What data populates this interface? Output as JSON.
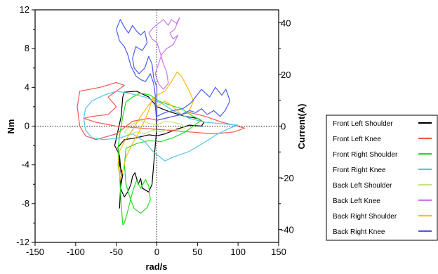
{
  "chart_data": {
    "type": "line",
    "xlabel": "rad/s",
    "ylabel": "Nm",
    "y2label": "Current(A)",
    "xlim": [
      -150,
      150
    ],
    "ylim": [
      -12,
      12
    ],
    "y2lim": [
      -45,
      45
    ],
    "xticks": [
      "-150",
      "-100",
      "-50",
      "0",
      "50",
      "100",
      "150"
    ],
    "yticks": [
      "-12",
      "-8",
      "-4",
      "0",
      "4",
      "8",
      "12"
    ],
    "y2ticks": [
      "-40",
      "-20",
      "0",
      "20",
      "40"
    ],
    "x_values_for_ticks": [
      -150,
      -100,
      -50,
      0,
      50,
      100,
      150
    ],
    "y_values_for_ticks": [
      -12,
      -8,
      -4,
      0,
      4,
      8,
      12
    ],
    "y2_values_for_ticks": [
      -40,
      -20,
      0,
      20,
      40
    ],
    "grid": false,
    "zero_lines": "dotted",
    "legend_position": "right",
    "series": [
      {
        "name": "Front Left Shoulder",
        "color": "#000000",
        "points": [
          [
            -46,
            -8.5
          ],
          [
            -44,
            -5
          ],
          [
            -46,
            -3
          ],
          [
            -52,
            -2
          ],
          [
            -48,
            -0.5
          ],
          [
            -44,
            1
          ],
          [
            -42,
            3
          ],
          [
            -40,
            3.5
          ],
          [
            -25,
            3.6
          ],
          [
            -10,
            3
          ],
          [
            0,
            2
          ],
          [
            15,
            1.5
          ],
          [
            35,
            1
          ],
          [
            50,
            0.8
          ],
          [
            58,
            0.4
          ],
          [
            55,
            0
          ],
          [
            40,
            0.1
          ],
          [
            25,
            -0.3
          ],
          [
            10,
            -0.8
          ],
          [
            0,
            -1
          ],
          [
            -10,
            -0.9
          ],
          [
            -25,
            -1.2
          ],
          [
            -40,
            -1.4
          ],
          [
            -44,
            -1.8
          ],
          [
            -48,
            -2.2
          ],
          [
            -46,
            -4
          ],
          [
            -42,
            -5
          ],
          [
            -45,
            -6.4
          ],
          [
            -40,
            -7.3
          ],
          [
            -36,
            -6.8
          ],
          [
            -32,
            -6
          ],
          [
            -30,
            -5.2
          ],
          [
            -27,
            -4.8
          ],
          [
            -23,
            -6
          ],
          [
            -20,
            -5.4
          ],
          [
            -18,
            -6.4
          ],
          [
            -10,
            -6.8
          ],
          [
            -6,
            -6
          ],
          [
            -4,
            -4
          ],
          [
            -2,
            -2
          ],
          [
            0,
            0
          ],
          [
            -2,
            2.5
          ]
        ]
      },
      {
        "name": "Front Left Knee",
        "color": "#f05a4f",
        "points": [
          [
            -70,
            4
          ],
          [
            -95,
            3.6
          ],
          [
            -98,
            2
          ],
          [
            -95,
            0
          ],
          [
            -88,
            -1
          ],
          [
            -75,
            -1.4
          ],
          [
            -50,
            -0.8
          ],
          [
            -30,
            0.5
          ],
          [
            -10,
            0.8
          ],
          [
            0,
            0.6
          ],
          [
            20,
            1
          ],
          [
            40,
            1.4
          ],
          [
            60,
            1
          ],
          [
            80,
            0.4
          ],
          [
            95,
            0.1
          ],
          [
            108,
            -0.2
          ],
          [
            95,
            -0.6
          ],
          [
            70,
            -0.8
          ],
          [
            40,
            -0.6
          ],
          [
            10,
            -0.4
          ],
          [
            -20,
            -0.2
          ],
          [
            -50,
            0
          ],
          [
            -75,
            0.4
          ],
          [
            -90,
            0.8
          ],
          [
            -80,
            1
          ],
          [
            -60,
            1.2
          ],
          [
            -50,
            2
          ],
          [
            -60,
            3
          ],
          [
            -40,
            4.2
          ],
          [
            -50,
            4.5
          ],
          [
            -70,
            4
          ]
        ]
      },
      {
        "name": "Front Right Shoulder",
        "color": "#22dd22",
        "points": [
          [
            -42,
            -10.2
          ],
          [
            -44,
            -8
          ],
          [
            -46,
            -5
          ],
          [
            -48,
            -2.5
          ],
          [
            -46,
            -1
          ],
          [
            -42,
            1
          ],
          [
            -38,
            2.5
          ],
          [
            -30,
            3
          ],
          [
            -20,
            3.4
          ],
          [
            -8,
            3.2
          ],
          [
            2,
            2.6
          ],
          [
            15,
            2.2
          ],
          [
            30,
            1.8
          ],
          [
            45,
            1
          ],
          [
            55,
            0.6
          ],
          [
            48,
            0.2
          ],
          [
            35,
            -0.6
          ],
          [
            20,
            -1.2
          ],
          [
            5,
            -1.6
          ],
          [
            -10,
            -1.5
          ],
          [
            -25,
            -1.8
          ],
          [
            -38,
            -2.3
          ],
          [
            -40,
            -4
          ],
          [
            -38,
            -6
          ],
          [
            -33,
            -7.4
          ],
          [
            -28,
            -8.5
          ],
          [
            -20,
            -9
          ],
          [
            -12,
            -8.4
          ],
          [
            -8,
            -7.6
          ],
          [
            -10,
            -6.2
          ],
          [
            -14,
            -5.5
          ],
          [
            -20,
            -6.4
          ],
          [
            -25,
            -5.6
          ],
          [
            -30,
            -6.8
          ],
          [
            -36,
            -8.8
          ],
          [
            -40,
            -10
          ],
          [
            -42,
            -10.2
          ]
        ]
      },
      {
        "name": "Front Right Knee",
        "color": "#57c4e6",
        "points": [
          [
            -90,
            0.8
          ],
          [
            -88,
            -0.4
          ],
          [
            -80,
            -1.2
          ],
          [
            -65,
            -1.4
          ],
          [
            -45,
            -1.2
          ],
          [
            -30,
            -0.8
          ],
          [
            -15,
            -1.6
          ],
          [
            -5,
            -2.6
          ],
          [
            10,
            -3.6
          ],
          [
            20,
            -3.2
          ],
          [
            40,
            -2.6
          ],
          [
            60,
            -1.6
          ],
          [
            75,
            -0.8
          ],
          [
            90,
            -0.2
          ],
          [
            100,
            0.1
          ],
          [
            85,
            0.2
          ],
          [
            60,
            0.4
          ],
          [
            40,
            0.8
          ],
          [
            20,
            1.6
          ],
          [
            5,
            2.4
          ],
          [
            -15,
            3
          ],
          [
            -35,
            3.4
          ],
          [
            -50,
            3.6
          ],
          [
            -65,
            3.2
          ],
          [
            -80,
            2.6
          ],
          [
            -88,
            1.8
          ],
          [
            -90,
            0.8
          ]
        ]
      },
      {
        "name": "Back Left Shoulder",
        "color": "#c8e57a",
        "points": [
          [
            -40,
            -0.6
          ],
          [
            -30,
            0.2
          ],
          [
            -20,
            0.6
          ],
          [
            -10,
            0.3
          ],
          [
            0,
            0.1
          ],
          [
            10,
            0.5
          ],
          [
            20,
            0.4
          ],
          [
            30,
            0.2
          ],
          [
            35,
            -0.2
          ],
          [
            25,
            -0.4
          ],
          [
            15,
            -0.3
          ],
          [
            5,
            -0.6
          ],
          [
            -5,
            -0.4
          ],
          [
            -15,
            -0.8
          ],
          [
            -25,
            -0.6
          ],
          [
            -35,
            -0.9
          ],
          [
            -40,
            -0.6
          ]
        ]
      },
      {
        "name": "Back Left Knee",
        "color": "#cc77ee",
        "points": [
          [
            -10,
            9.6
          ],
          [
            -4,
            10.2
          ],
          [
            2,
            10.6
          ],
          [
            8,
            11
          ],
          [
            14,
            10.4
          ],
          [
            18,
            11
          ],
          [
            24,
            10.6
          ],
          [
            28,
            11.2
          ],
          [
            22,
            10
          ],
          [
            16,
            9.6
          ],
          [
            20,
            9
          ],
          [
            26,
            9.4
          ],
          [
            20,
            8.4
          ],
          [
            12,
            8
          ],
          [
            6,
            7.4
          ],
          [
            2,
            6.4
          ],
          [
            -2,
            5.4
          ],
          [
            2,
            4.4
          ],
          [
            8,
            3.8
          ],
          [
            14,
            4.4
          ],
          [
            12,
            5.6
          ],
          [
            8,
            6.4
          ],
          [
            4,
            7.6
          ],
          [
            0,
            8.6
          ],
          [
            -6,
            9
          ],
          [
            -10,
            9.6
          ]
        ]
      },
      {
        "name": "Back Right Shoulder",
        "color": "#ffbb11",
        "points": [
          [
            -45,
            -5.6
          ],
          [
            -48,
            -4
          ],
          [
            -46,
            -2.6
          ],
          [
            -40,
            -1.6
          ],
          [
            -30,
            -0.4
          ],
          [
            -20,
            1
          ],
          [
            -10,
            2.2
          ],
          [
            0,
            3.2
          ],
          [
            10,
            3.6
          ],
          [
            18,
            4.6
          ],
          [
            25,
            5.6
          ],
          [
            30,
            5.2
          ],
          [
            35,
            4.4
          ],
          [
            40,
            3.6
          ],
          [
            45,
            2.6
          ],
          [
            40,
            1.6
          ],
          [
            30,
            1.2
          ],
          [
            20,
            2
          ],
          [
            10,
            2.6
          ],
          [
            0,
            2
          ],
          [
            -5,
            3
          ],
          [
            -10,
            1.6
          ],
          [
            -15,
            0.6
          ],
          [
            -22,
            -0.6
          ],
          [
            -30,
            -1.8
          ],
          [
            -38,
            -3.2
          ],
          [
            -42,
            -4.6
          ],
          [
            -45,
            -5.6
          ]
        ]
      },
      {
        "name": "Back Right Knee",
        "color": "#4d5cee",
        "points": [
          [
            -50,
            10
          ],
          [
            -45,
            11
          ],
          [
            -40,
            10.2
          ],
          [
            -35,
            9.6
          ],
          [
            -30,
            10.4
          ],
          [
            -25,
            9.8
          ],
          [
            -20,
            9.4
          ],
          [
            -15,
            9.8
          ],
          [
            -12,
            8.6
          ],
          [
            -18,
            7.8
          ],
          [
            -26,
            8.2
          ],
          [
            -30,
            7
          ],
          [
            -28,
            6
          ],
          [
            -22,
            5.4
          ],
          [
            -15,
            6
          ],
          [
            -10,
            7.2
          ],
          [
            -6,
            6.4
          ],
          [
            -4,
            5
          ],
          [
            0,
            4
          ],
          [
            0,
            2
          ],
          [
            0,
            1
          ],
          [
            10,
            1.4
          ],
          [
            20,
            1.6
          ],
          [
            32,
            1.8
          ],
          [
            42,
            2.4
          ],
          [
            55,
            3.8
          ],
          [
            65,
            3
          ],
          [
            72,
            4
          ],
          [
            80,
            3.2
          ],
          [
            85,
            3.8
          ],
          [
            90,
            2.6
          ],
          [
            84,
            1.6
          ],
          [
            78,
            1
          ],
          [
            70,
            1.6
          ],
          [
            62,
            1.2
          ],
          [
            55,
            1.8
          ],
          [
            48,
            1.4
          ],
          [
            40,
            1.6
          ],
          [
            30,
            1.2
          ],
          [
            20,
            1
          ],
          [
            10,
            0.8
          ],
          [
            0,
            0.6
          ],
          [
            -2,
            2
          ],
          [
            -2,
            3.2
          ],
          [
            -4,
            4.4
          ],
          [
            -8,
            5.4
          ],
          [
            -14,
            4.6
          ],
          [
            -20,
            4.8
          ],
          [
            -26,
            5.2
          ],
          [
            -32,
            6.2
          ],
          [
            -36,
            7.4
          ],
          [
            -40,
            8.2
          ],
          [
            -46,
            8.8
          ],
          [
            -50,
            10
          ]
        ]
      }
    ]
  }
}
